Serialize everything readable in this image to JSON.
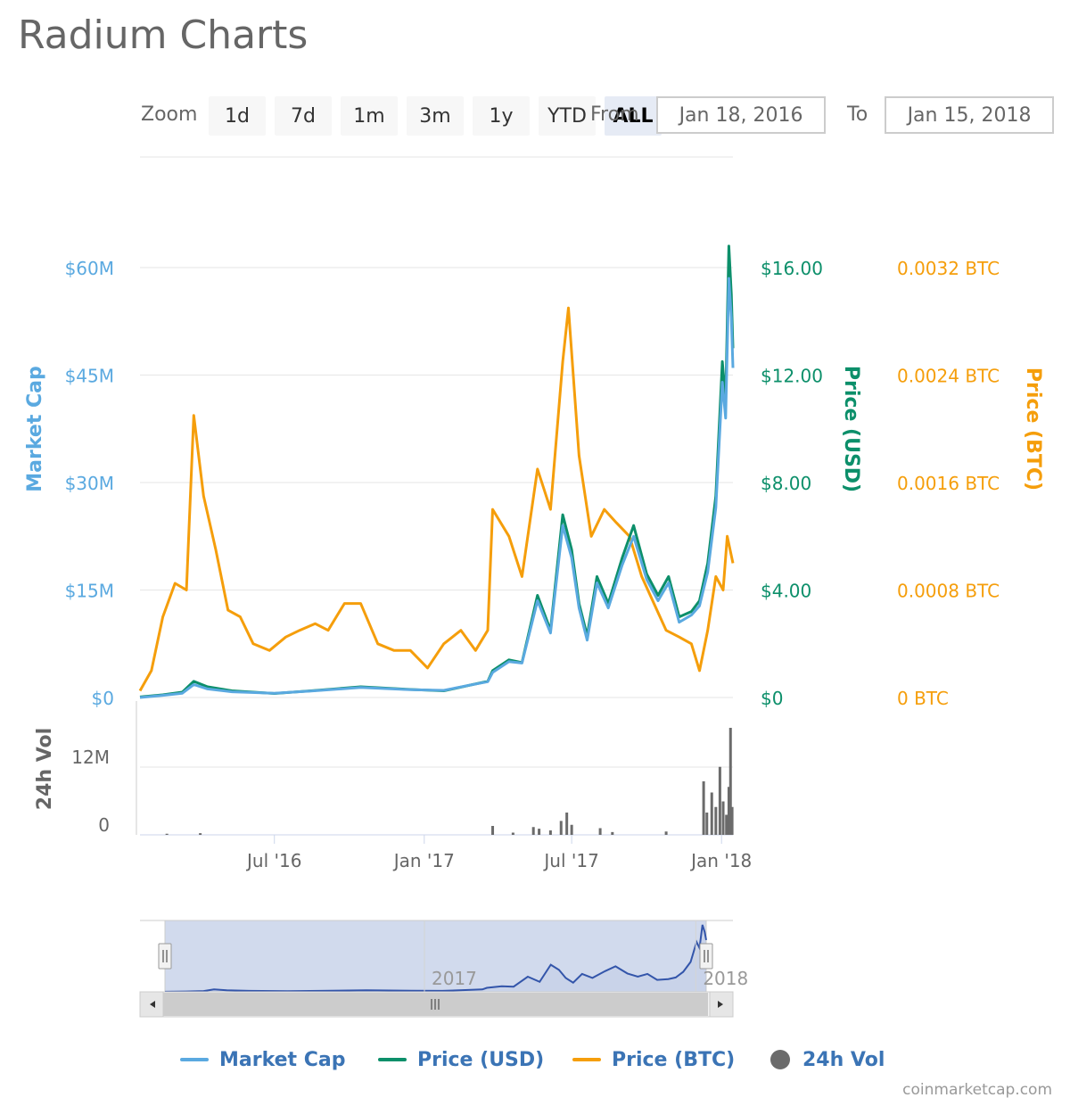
{
  "title": "Radium Charts",
  "zoom": {
    "label": "Zoom",
    "buttons": [
      "1d",
      "7d",
      "1m",
      "3m",
      "1y",
      "YTD",
      "ALL"
    ],
    "active": "ALL"
  },
  "range": {
    "from_label": "From",
    "from_value": "Jan 18, 2016",
    "to_label": "To",
    "to_value": "Jan 15, 2018"
  },
  "colors": {
    "market_cap": "#5aa9e0",
    "price_usd": "#0c8f6a",
    "price_btc": "#f59e0b",
    "volume": "#6b6b6b"
  },
  "chart_data": {
    "type": "line",
    "title": "Radium Charts",
    "x_range": [
      "2016-01-18",
      "2018-01-15"
    ],
    "x_tick_labels": [
      "Jul '16",
      "Jan '17",
      "Jul '17",
      "Jan '18"
    ],
    "y_axes": {
      "market_cap": {
        "label": "Market Cap",
        "ticks": [
          "$0",
          "$15M",
          "$30M",
          "$45M",
          "$60M"
        ],
        "ylim": [
          0,
          60000000
        ]
      },
      "price_usd": {
        "label": "Price (USD)",
        "ticks": [
          "$0",
          "$4.00",
          "$8.00",
          "$12.00",
          "$16.00"
        ],
        "ylim": [
          0,
          16
        ]
      },
      "price_btc": {
        "label": "Price (BTC)",
        "ticks": [
          "0 BTC",
          "0.0008 BTC",
          "0.0016 BTC",
          "0.0024 BTC",
          "0.0032 BTC"
        ],
        "ylim": [
          0,
          0.0032
        ]
      },
      "volume": {
        "label": "24h Vol",
        "ticks": [
          "0",
          "12M"
        ],
        "ylim": [
          0,
          24000000
        ]
      }
    },
    "grid": true,
    "legend_position": "bottom",
    "series": [
      {
        "name": "Price (BTC)",
        "axis": "price_btc",
        "points": [
          [
            "2016-01-18",
            5e-05
          ],
          [
            "2016-02-01",
            0.0002
          ],
          [
            "2016-02-15",
            0.0006
          ],
          [
            "2016-03-01",
            0.00085
          ],
          [
            "2016-03-15",
            0.0008
          ],
          [
            "2016-03-24",
            0.0021
          ],
          [
            "2016-04-05",
            0.0015
          ],
          [
            "2016-04-20",
            0.0011
          ],
          [
            "2016-05-05",
            0.00065
          ],
          [
            "2016-05-20",
            0.0006
          ],
          [
            "2016-06-05",
            0.0004
          ],
          [
            "2016-06-25",
            0.00035
          ],
          [
            "2016-07-15",
            0.00045
          ],
          [
            "2016-08-01",
            0.0005
          ],
          [
            "2016-08-20",
            0.00055
          ],
          [
            "2016-09-05",
            0.0005
          ],
          [
            "2016-09-25",
            0.0007
          ],
          [
            "2016-10-15",
            0.0007
          ],
          [
            "2016-11-05",
            0.0004
          ],
          [
            "2016-11-25",
            0.00035
          ],
          [
            "2016-12-15",
            0.00035
          ],
          [
            "2017-01-05",
            0.00022
          ],
          [
            "2017-01-25",
            0.0004
          ],
          [
            "2017-02-15",
            0.0005
          ],
          [
            "2017-03-05",
            0.00035
          ],
          [
            "2017-03-20",
            0.0005
          ],
          [
            "2017-03-26",
            0.0014
          ],
          [
            "2017-04-15",
            0.0012
          ],
          [
            "2017-05-01",
            0.0009
          ],
          [
            "2017-05-20",
            0.0017
          ],
          [
            "2017-06-05",
            0.0014
          ],
          [
            "2017-06-20",
            0.0025
          ],
          [
            "2017-06-27",
            0.0029
          ],
          [
            "2017-07-10",
            0.0018
          ],
          [
            "2017-07-25",
            0.0012
          ],
          [
            "2017-08-10",
            0.0014
          ],
          [
            "2017-08-25",
            0.0013
          ],
          [
            "2017-09-10",
            0.0012
          ],
          [
            "2017-09-25",
            0.0009
          ],
          [
            "2017-10-10",
            0.0007
          ],
          [
            "2017-10-25",
            0.0005
          ],
          [
            "2017-11-10",
            0.00045
          ],
          [
            "2017-11-25",
            0.0004
          ],
          [
            "2017-12-05",
            0.0002
          ],
          [
            "2017-12-15",
            0.0005
          ],
          [
            "2017-12-25",
            0.0009
          ],
          [
            "2018-01-03",
            0.0008
          ],
          [
            "2018-01-08",
            0.0012
          ],
          [
            "2018-01-15",
            0.001
          ]
        ]
      },
      {
        "name": "Price (USD)",
        "axis": "price_usd",
        "points": [
          [
            "2016-01-18",
            0.02
          ],
          [
            "2016-02-15",
            0.1
          ],
          [
            "2016-03-10",
            0.2
          ],
          [
            "2016-03-24",
            0.6
          ],
          [
            "2016-04-10",
            0.4
          ],
          [
            "2016-05-10",
            0.25
          ],
          [
            "2016-07-01",
            0.15
          ],
          [
            "2016-08-15",
            0.25
          ],
          [
            "2016-10-15",
            0.4
          ],
          [
            "2016-12-15",
            0.3
          ],
          [
            "2017-01-25",
            0.25
          ],
          [
            "2017-02-25",
            0.45
          ],
          [
            "2017-03-20",
            0.6
          ],
          [
            "2017-03-26",
            1.0
          ],
          [
            "2017-04-15",
            1.4
          ],
          [
            "2017-05-01",
            1.3
          ],
          [
            "2017-05-20",
            3.8
          ],
          [
            "2017-06-05",
            2.5
          ],
          [
            "2017-06-20",
            6.8
          ],
          [
            "2017-07-01",
            5.5
          ],
          [
            "2017-07-10",
            3.5
          ],
          [
            "2017-07-20",
            2.3
          ],
          [
            "2017-08-01",
            4.5
          ],
          [
            "2017-08-15",
            3.5
          ],
          [
            "2017-09-01",
            5.2
          ],
          [
            "2017-09-15",
            6.4
          ],
          [
            "2017-10-01",
            4.6
          ],
          [
            "2017-10-15",
            3.8
          ],
          [
            "2017-10-28",
            4.5
          ],
          [
            "2017-11-10",
            3.0
          ],
          [
            "2017-11-25",
            3.2
          ],
          [
            "2017-12-05",
            3.6
          ],
          [
            "2017-12-15",
            5.0
          ],
          [
            "2017-12-25",
            7.5
          ],
          [
            "2018-01-02",
            12.5
          ],
          [
            "2018-01-06",
            11.0
          ],
          [
            "2018-01-10",
            16.8
          ],
          [
            "2018-01-13",
            15.0
          ],
          [
            "2018-01-15",
            13.0
          ]
        ]
      },
      {
        "name": "Market Cap",
        "axis": "market_cap",
        "points": [
          [
            "2016-01-18",
            0
          ],
          [
            "2016-02-15",
            300000
          ],
          [
            "2016-03-10",
            600000
          ],
          [
            "2016-03-24",
            1800000
          ],
          [
            "2016-04-10",
            1200000
          ],
          [
            "2016-05-10",
            800000
          ],
          [
            "2016-07-01",
            600000
          ],
          [
            "2016-08-15",
            900000
          ],
          [
            "2016-10-15",
            1400000
          ],
          [
            "2016-12-15",
            1100000
          ],
          [
            "2017-01-25",
            1000000
          ],
          [
            "2017-02-25",
            1700000
          ],
          [
            "2017-03-20",
            2200000
          ],
          [
            "2017-03-26",
            3500000
          ],
          [
            "2017-04-15",
            5000000
          ],
          [
            "2017-05-01",
            4800000
          ],
          [
            "2017-05-20",
            13500000
          ],
          [
            "2017-06-05",
            9000000
          ],
          [
            "2017-06-20",
            24000000
          ],
          [
            "2017-07-01",
            19500000
          ],
          [
            "2017-07-10",
            12500000
          ],
          [
            "2017-07-20",
            8000000
          ],
          [
            "2017-08-01",
            16000000
          ],
          [
            "2017-08-15",
            12500000
          ],
          [
            "2017-09-01",
            18500000
          ],
          [
            "2017-09-15",
            22500000
          ],
          [
            "2017-10-01",
            16500000
          ],
          [
            "2017-10-15",
            13500000
          ],
          [
            "2017-10-28",
            16000000
          ],
          [
            "2017-11-10",
            10500000
          ],
          [
            "2017-11-25",
            11500000
          ],
          [
            "2017-12-05",
            12800000
          ],
          [
            "2017-12-15",
            17500000
          ],
          [
            "2017-12-25",
            26500000
          ],
          [
            "2018-01-02",
            44000000
          ],
          [
            "2018-01-06",
            39000000
          ],
          [
            "2018-01-10",
            58500000
          ],
          [
            "2018-01-13",
            53000000
          ],
          [
            "2018-01-15",
            46000000
          ]
        ]
      },
      {
        "name": "24h Vol",
        "axis": "volume",
        "type": "bar",
        "points": [
          [
            "2016-02-20",
            200000
          ],
          [
            "2016-04-01",
            300000
          ],
          [
            "2017-03-26",
            1600000
          ],
          [
            "2017-04-20",
            400000
          ],
          [
            "2017-05-15",
            1400000
          ],
          [
            "2017-05-22",
            1100000
          ],
          [
            "2017-06-05",
            800000
          ],
          [
            "2017-06-18",
            2500000
          ],
          [
            "2017-06-25",
            4000000
          ],
          [
            "2017-07-01",
            1800000
          ],
          [
            "2017-08-05",
            1200000
          ],
          [
            "2017-08-20",
            500000
          ],
          [
            "2017-10-25",
            600000
          ],
          [
            "2017-12-10",
            9600000
          ],
          [
            "2017-12-14",
            4000000
          ],
          [
            "2017-12-20",
            7600000
          ],
          [
            "2017-12-25",
            5000000
          ],
          [
            "2017-12-30",
            12200000
          ],
          [
            "2018-01-03",
            6000000
          ],
          [
            "2018-01-07",
            3600000
          ],
          [
            "2018-01-10",
            8600000
          ],
          [
            "2018-01-12",
            19200000
          ],
          [
            "2018-01-14",
            5000000
          ]
        ]
      }
    ]
  },
  "navigator": {
    "labels": [
      "2017",
      "2018"
    ]
  },
  "legend": [
    {
      "label": "Market Cap",
      "color": "#5aa9e0",
      "shape": "line"
    },
    {
      "label": "Price (USD)",
      "color": "#0c8f6a",
      "shape": "line"
    },
    {
      "label": "Price (BTC)",
      "color": "#f59e0b",
      "shape": "line"
    },
    {
      "label": "24h Vol",
      "color": "#6b6b6b",
      "shape": "dot"
    }
  ],
  "credits": "coinmarketcap.com"
}
